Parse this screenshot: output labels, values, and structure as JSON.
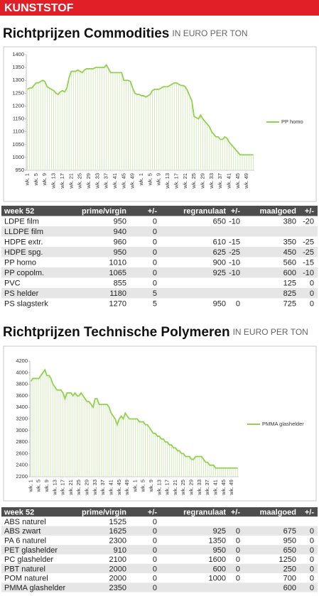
{
  "header": {
    "section": "KUNSTSTOF"
  },
  "sections": [
    {
      "title": "Richtprijzen Commodities",
      "subtitle": "IN EURO PER TON"
    },
    {
      "title": "Richtprijzen Technische Polymeren",
      "subtitle": "IN EURO PER TON"
    }
  ],
  "chart_data": [
    {
      "type": "line",
      "categories": [
        "wk. 1",
        null,
        null,
        null,
        "wk. 5",
        null,
        null,
        null,
        "wk. 9",
        null,
        null,
        null,
        "wk. 13",
        null,
        null,
        null,
        "wk. 17",
        null,
        null,
        null,
        "wk. 21",
        null,
        null,
        null,
        "wk. 25",
        null,
        null,
        null,
        "wk. 29",
        null,
        null,
        null,
        "wk. 33",
        null,
        null,
        null,
        "wk. 37",
        null,
        null,
        null,
        "wk. 41",
        null,
        null,
        null,
        "wk. 45",
        null,
        null,
        null,
        "wk. 49",
        null,
        null,
        null,
        "wk. 1",
        null,
        null,
        null,
        "wk. 5",
        null,
        null,
        null,
        "wk. 9",
        null,
        null,
        null,
        "wk. 13",
        null,
        null,
        null,
        "wk. 17",
        null,
        null,
        null,
        "wk. 21",
        null,
        null,
        null,
        "wk. 25",
        null,
        null,
        null,
        "wk. 29",
        null,
        null,
        null,
        "wk. 33",
        null,
        null,
        null,
        "wk. 37",
        null,
        null,
        null,
        "wk. 41",
        null,
        null,
        null,
        "wk. 45",
        null,
        null,
        null,
        "wk. 49",
        null,
        null,
        null
      ],
      "series": [
        {
          "name": "PP homo",
          "color": "#92d050",
          "values": [
            1265,
            1270,
            1270,
            1280,
            1290,
            1290,
            1295,
            1300,
            1295,
            1275,
            1270,
            1265,
            1260,
            1250,
            1245,
            1255,
            1260,
            1255,
            1270,
            1310,
            1335,
            1335,
            1335,
            1340,
            1335,
            1330,
            1340,
            1345,
            1345,
            1345,
            1345,
            1350,
            1350,
            1350,
            1350,
            1350,
            1360,
            1345,
            1330,
            1330,
            1330,
            1330,
            1330,
            1330,
            1300,
            1300,
            1300,
            1295,
            1270,
            1250,
            1245,
            1245,
            1240,
            1240,
            1235,
            1240,
            1245,
            1260,
            1265,
            1265,
            1265,
            1270,
            1275,
            1275,
            1275,
            1280,
            1285,
            1290,
            1290,
            1285,
            1280,
            1280,
            1275,
            1260,
            1240,
            1220,
            1160,
            1155,
            1150,
            1165,
            1150,
            1140,
            1130,
            1120,
            1100,
            1090,
            1080,
            1080,
            1070,
            1070,
            1080,
            1075,
            1060,
            1050,
            1040,
            1030,
            1020,
            1010,
            1010,
            1010,
            1010,
            1010,
            1010,
            1010
          ]
        }
      ],
      "ylim": [
        950,
        1400
      ],
      "yticks": [
        950,
        1000,
        1050,
        1100,
        1150,
        1200,
        1250,
        1300,
        1350,
        1400
      ],
      "legend": "right"
    },
    {
      "type": "line",
      "categories": [
        "wk. 1",
        null,
        null,
        null,
        "wk. 5",
        null,
        null,
        null,
        "wk. 9",
        null,
        null,
        null,
        "wk. 13",
        null,
        null,
        null,
        "wk. 17",
        null,
        null,
        null,
        "wk. 21",
        null,
        null,
        null,
        "wk. 25",
        null,
        null,
        null,
        "wk. 29",
        null,
        null,
        null,
        "wk. 33",
        null,
        null,
        null,
        "wk. 37",
        null,
        null,
        null,
        "wk. 41",
        null,
        null,
        null,
        "wk. 45",
        null,
        null,
        null,
        "wk. 49",
        null,
        null,
        null,
        "wk. 1",
        null,
        null,
        null,
        "wk. 5",
        null,
        null,
        null,
        "wk. 9",
        null,
        null,
        null,
        "wk. 13",
        null,
        null,
        null,
        "wk. 17",
        null,
        null,
        null,
        "wk. 21",
        null,
        null,
        null,
        "wk. 25",
        null,
        null,
        null,
        "wk. 29",
        null,
        null,
        null,
        "wk. 33",
        null,
        null,
        null,
        "wk. 37",
        null,
        null,
        null,
        "wk. 41",
        null,
        null,
        null,
        "wk. 45",
        null,
        null,
        null,
        "wk. 49",
        null,
        null,
        null
      ],
      "series": [
        {
          "name": "PMMA glashelder",
          "color": "#92d050",
          "values": [
            3850,
            3900,
            3900,
            3900,
            3900,
            3950,
            4000,
            4050,
            3950,
            3950,
            3900,
            3800,
            3750,
            3700,
            3700,
            3700,
            3650,
            3550,
            3650,
            3650,
            3650,
            3600,
            3650,
            3600,
            3600,
            3650,
            3600,
            3550,
            3500,
            3500,
            3450,
            3400,
            3550,
            3550,
            3450,
            3450,
            3450,
            3450,
            3450,
            3400,
            3300,
            3250,
            3200,
            3100,
            3200,
            3250,
            3200,
            3300,
            3250,
            3200,
            3200,
            3200,
            3200,
            3200,
            3150,
            3150,
            3150,
            3100,
            3100,
            3050,
            3000,
            2950,
            2950,
            2900,
            2900,
            2850,
            2850,
            2800,
            2800,
            2750,
            2750,
            2700,
            2700,
            2650,
            2650,
            2600,
            2600,
            2550,
            2550,
            2550,
            2500,
            2500,
            2550,
            2550,
            2550,
            2550,
            2500,
            2450,
            2450,
            2400,
            2400,
            2400,
            2350,
            2350,
            2350,
            2350,
            2350,
            2350,
            2350,
            2350,
            2350,
            2350,
            2350,
            2350
          ]
        }
      ],
      "ylim": [
        2200,
        4200
      ],
      "yticks": [
        2200,
        2400,
        2600,
        2800,
        3000,
        3200,
        3400,
        3600,
        3800,
        4000,
        4200
      ],
      "legend": "right"
    }
  ],
  "tables": [
    {
      "columns": [
        "week 52",
        "prime/virgin",
        "+/-",
        "regranulaat",
        "+/-",
        "maalgoed",
        "+/-"
      ],
      "rows": [
        [
          "LDPE film",
          "950",
          "0",
          "650",
          "-10",
          "380",
          "-20"
        ],
        [
          "LLDPE film",
          "940",
          "0",
          null,
          null,
          null,
          null
        ],
        [
          "HDPE extr.",
          "960",
          "0",
          "610",
          "-15",
          "350",
          "-25"
        ],
        [
          "HDPE spg.",
          "950",
          "0",
          "625",
          "-25",
          "450",
          "-25"
        ],
        [
          "PP homo",
          "1010",
          "0",
          "900",
          "-10",
          "560",
          "-15"
        ],
        [
          "PP copolm.",
          "1065",
          "0",
          "925",
          "-10",
          "600",
          "-10"
        ],
        [
          "PVC",
          "855",
          "0",
          null,
          null,
          "125",
          "0"
        ],
        [
          "PS helder",
          "1180",
          "5",
          null,
          null,
          "825",
          "0"
        ],
        [
          "PS slagsterk",
          "1270",
          "5",
          "950",
          "0",
          "725",
          "0"
        ]
      ]
    },
    {
      "columns": [
        "week 52",
        "prime/virgin",
        "+/-",
        "regranulaat",
        "+/-",
        "maalgoed",
        "+/-"
      ],
      "rows": [
        [
          "ABS naturel",
          "1525",
          "0",
          null,
          null,
          null,
          null
        ],
        [
          "ABS zwart",
          "1625",
          "0",
          "925",
          "0",
          "675",
          "0"
        ],
        [
          "PA 6 naturel",
          "2300",
          "0",
          "1350",
          "0",
          "950",
          "0"
        ],
        [
          "PET glashelder",
          "910",
          "0",
          "950",
          "0",
          "650",
          "0"
        ],
        [
          "PC glashelder",
          "2100",
          "0",
          "1600",
          "0",
          "1250",
          "0"
        ],
        [
          "PBT naturel",
          "2000",
          "0",
          "600",
          "0",
          "250",
          "0"
        ],
        [
          "POM naturel",
          "2000",
          "0",
          "1000",
          "0",
          "700",
          "0"
        ],
        [
          "PMMA glashelder",
          "2350",
          "0",
          null,
          null,
          "600",
          "0"
        ]
      ]
    }
  ]
}
